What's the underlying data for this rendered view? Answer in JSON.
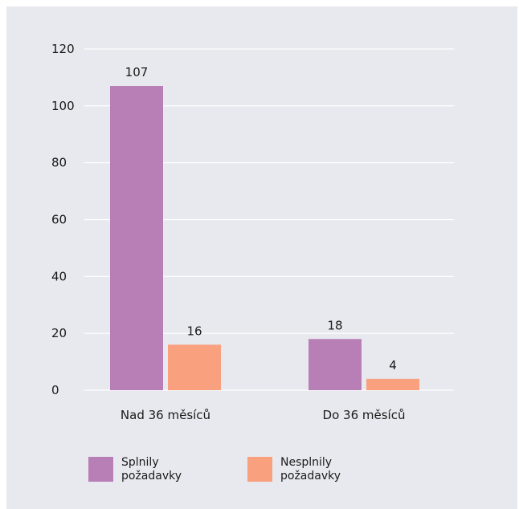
{
  "chart_data": {
    "type": "bar",
    "categories": [
      "Nad 36 měsíců",
      "Do 36 měsíců"
    ],
    "series": [
      {
        "name": "Splnily požadavky",
        "values": [
          107,
          18
        ],
        "color": "#b87eb6",
        "legend_lines": [
          "Splnily",
          "požadavky"
        ]
      },
      {
        "name": "Nesplnily požadavky",
        "values": [
          16,
          4
        ],
        "color": "#f9a07f",
        "legend_lines": [
          "Nesplnily",
          "požadavky"
        ]
      }
    ],
    "title": "",
    "xlabel": "",
    "ylabel": "",
    "ylim": [
      0,
      120
    ],
    "yticks": [
      0,
      20,
      40,
      60,
      80,
      100,
      120
    ],
    "grid": true,
    "gridline_color": "#ffffff",
    "legend_position": "bottom-left"
  }
}
